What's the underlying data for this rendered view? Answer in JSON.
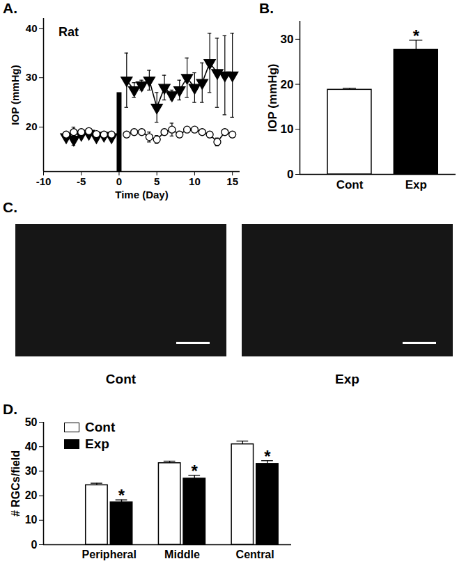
{
  "chart_data": [
    {
      "type": "line",
      "title": "A.",
      "annotations": [
        {
          "text": "Rat"
        }
      ],
      "x_label": "Time (Day)",
      "y_label": "IOP (mmHg)",
      "xlim": [
        -10,
        16
      ],
      "xticks": [
        -10,
        -5,
        0,
        5,
        10,
        15
      ],
      "ylim": [
        11,
        42
      ],
      "yticks": [
        20,
        30,
        40
      ],
      "event_bar": {
        "x": 0,
        "y": 27
      },
      "x": [
        -7,
        -6,
        -5,
        -4,
        -3,
        -2,
        -1,
        0,
        1,
        2,
        3,
        4,
        5,
        6,
        7,
        8,
        9,
        10,
        11,
        12,
        13,
        14,
        15
      ],
      "series": [
        {
          "color": "#000000",
          "marker": "triangle-down",
          "values": [
            18,
            17.5,
            18.5,
            18.7,
            18,
            18.3,
            18,
            null,
            29.5,
            27.5,
            28.5,
            29.5,
            24,
            28,
            26.5,
            27.5,
            30,
            28,
            29,
            33,
            31,
            30.5,
            30.5
          ],
          "errors": [
            0.5,
            1.2,
            0.6,
            0.6,
            0.5,
            0.5,
            0.5,
            null,
            5.5,
            1.5,
            1,
            2,
            3,
            2.5,
            1,
            2,
            4,
            3,
            4,
            6,
            7,
            8,
            8.5
          ]
        },
        {
          "color": "#000000",
          "marker": "circle-open",
          "values": [
            18.5,
            19,
            19,
            19.2,
            18.6,
            18.5,
            18.5,
            null,
            18.5,
            19,
            19,
            18,
            17.5,
            19,
            19.5,
            18.5,
            19.5,
            19.5,
            19,
            18.5,
            17,
            19,
            18.5
          ],
          "errors": [
            0.4,
            1,
            0.5,
            0.4,
            0.4,
            0.4,
            0.4,
            null,
            0.5,
            0.5,
            0.5,
            1,
            0.8,
            0.6,
            1.3,
            0.5,
            0.5,
            0.5,
            0.5,
            0.5,
            0.8,
            0.5,
            0.5
          ]
        }
      ]
    },
    {
      "type": "bar",
      "title": "B.",
      "y_label": "IOP (mmHg)",
      "categories": [
        "Cont",
        "Exp"
      ],
      "values": [
        18.8,
        27.7
      ],
      "errors": [
        0.3,
        2.1
      ],
      "colors": [
        "#ffffff",
        "#000000"
      ],
      "ylim": [
        0,
        34
      ],
      "yticks": [
        0,
        10,
        20,
        30
      ],
      "annotations": [
        {
          "text": "*",
          "x": "Exp"
        }
      ]
    },
    {
      "type": "image",
      "title": "C.",
      "labels": [
        "Cont",
        "Exp"
      ]
    },
    {
      "type": "bar",
      "title": "D.",
      "y_label": "# RGCs/field",
      "categories": [
        "Peripheral",
        "Middle",
        "Central"
      ],
      "series": [
        {
          "name": "Cont",
          "color": "#ffffff",
          "values": [
            24.3,
            33.3,
            41
          ],
          "errors": [
            0.8,
            0.8,
            1.3
          ]
        },
        {
          "name": "Exp",
          "color": "#000000",
          "values": [
            17.3,
            27,
            33
          ],
          "errors": [
            1,
            1.3,
            1.3
          ]
        }
      ],
      "ylim": [
        0,
        50
      ],
      "yticks": [
        0,
        10,
        20,
        30,
        40,
        50
      ],
      "legend": "top-left",
      "annotations": [
        {
          "text": "*",
          "x": "Peripheral",
          "series": "Exp"
        },
        {
          "text": "*",
          "x": "Middle",
          "series": "Exp"
        },
        {
          "text": "*",
          "x": "Central",
          "series": "Exp"
        }
      ]
    }
  ]
}
